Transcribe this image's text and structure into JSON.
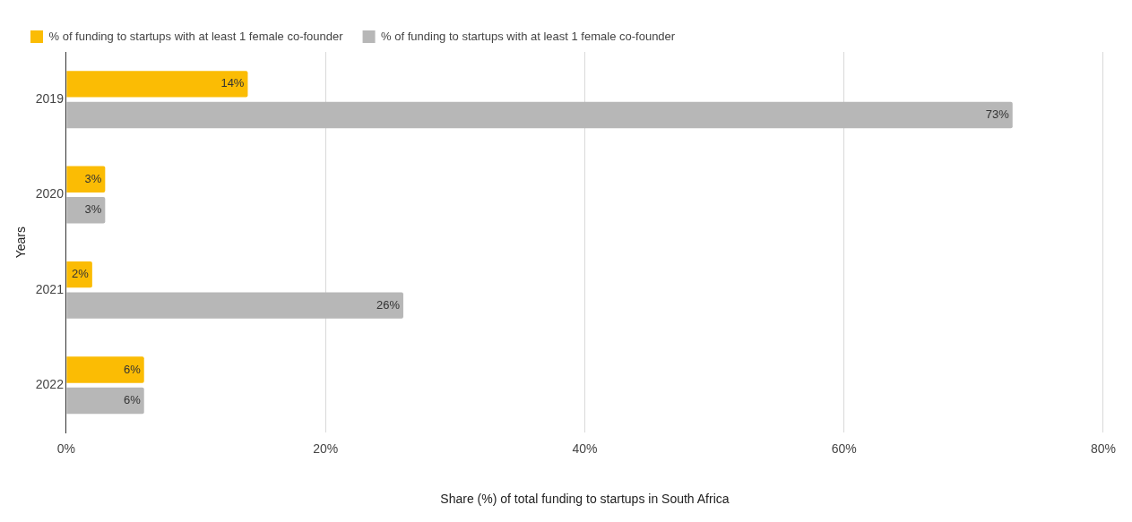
{
  "chart_data": {
    "type": "bar",
    "orientation": "horizontal",
    "xlabel": "Share (%) of total funding to startups in South Africa",
    "ylabel": "Years",
    "categories": [
      "2019",
      "2020",
      "2021",
      "2022"
    ],
    "series": [
      {
        "name": "% of funding to startups with at least 1 female co-founder",
        "color": "#fbbc04",
        "values": [
          14,
          3,
          2,
          6
        ],
        "value_labels": [
          "14%",
          "3%",
          "2%",
          "6%"
        ]
      },
      {
        "name": "% of funding to startups with at least 1 female co-founder",
        "color": "#b7b7b7",
        "values": [
          73,
          3,
          26,
          6
        ],
        "value_labels": [
          "73%",
          "3%",
          "26%",
          "6%"
        ]
      }
    ],
    "xlim": [
      0,
      80
    ],
    "xticks": [
      {
        "value": 0,
        "label": "0%"
      },
      {
        "value": 20,
        "label": "20%"
      },
      {
        "value": 40,
        "label": "40%"
      },
      {
        "value": 60,
        "label": "60%"
      },
      {
        "value": 80,
        "label": "80%"
      }
    ],
    "grid": "x",
    "legend": "top left"
  }
}
